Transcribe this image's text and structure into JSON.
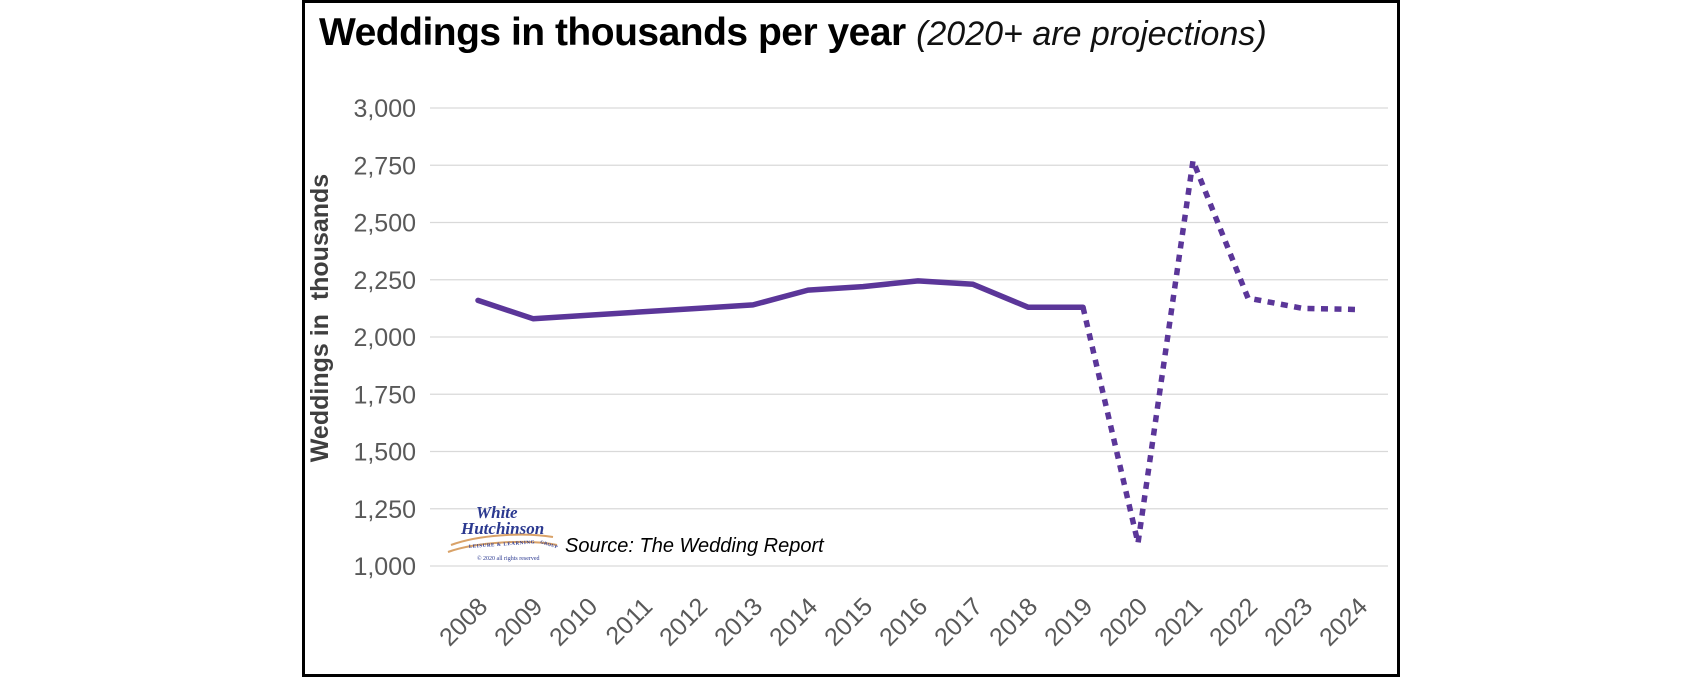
{
  "chart": {
    "title": "Weddings in thousands per year",
    "subtitle": "(2020+ are projections)",
    "source": "Source: The Wedding Report"
  },
  "logo": {
    "line1": "White",
    "line2": "Hutchinson",
    "tagline": "LEISURE & LEARNING",
    "tagline2": "GROUP",
    "copyright": "© 2020 all rights reserved"
  },
  "chart_data": {
    "type": "line",
    "title": "Weddings in thousands per year",
    "subtitle": "(2020+ are projections)",
    "ylabel": "Weddings in  thousands",
    "categories": [
      "2008",
      "2009",
      "2010",
      "2011",
      "2012",
      "2013",
      "2014",
      "2015",
      "2016",
      "2017",
      "2018",
      "2019",
      "2020",
      "2021",
      "2022",
      "2023",
      "2024"
    ],
    "values": [
      2160,
      2080,
      2095,
      2110,
      2125,
      2140,
      2205,
      2220,
      2245,
      2230,
      2130,
      2130,
      1100,
      2770,
      2170,
      2125,
      2120
    ],
    "solid_until": "2019",
    "projection_from": "2020",
    "yticks": [
      3000,
      2750,
      2500,
      2250,
      2000,
      1750,
      1500,
      1250,
      1000
    ],
    "ylim": [
      1000,
      3000
    ],
    "grid": "horizontal",
    "legend_position": "none",
    "line_color": "#5B3699",
    "gridline_color": "#D9D9D9",
    "tick_label_color": "#595959",
    "axis_title_color": "#3F3F3F"
  }
}
